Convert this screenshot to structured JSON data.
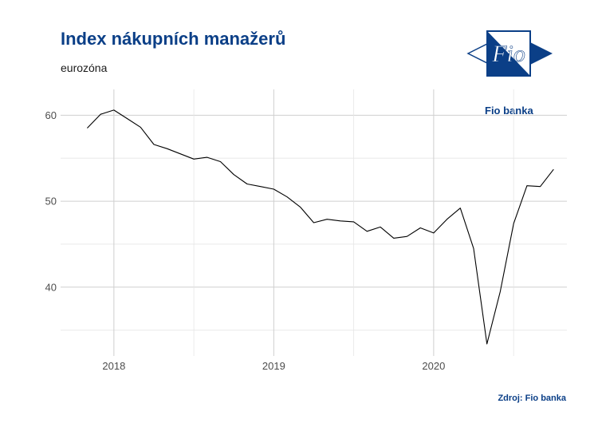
{
  "header": {
    "title": "Index nákupních manažerů",
    "subtitle": "eurozóna"
  },
  "logo": {
    "mark_text": "Fio",
    "brand_text": "Fio banka",
    "color": "#0b3f87"
  },
  "footer": {
    "source": "Zdroj: Fio banka"
  },
  "chart_data": {
    "type": "line",
    "title": "Index nákupních manažerů",
    "subtitle": "eurozóna",
    "xlabel": "",
    "ylabel": "",
    "x_tick_labels": [
      "2018",
      "2019",
      "2020"
    ],
    "y_tick_labels": [
      "40",
      "50",
      "60"
    ],
    "ylim": [
      32,
      63
    ],
    "xlim": [
      "2017-09",
      "2020-11"
    ],
    "grid": true,
    "line_color": "#000000",
    "series": [
      {
        "x": [
          "2017-11",
          "2017-12",
          "2018-01",
          "2018-02",
          "2018-03",
          "2018-04",
          "2018-05",
          "2018-06",
          "2018-07",
          "2018-08",
          "2018-09",
          "2018-10",
          "2018-11",
          "2018-12",
          "2019-01",
          "2019-02",
          "2019-03",
          "2019-04",
          "2019-05",
          "2019-06",
          "2019-07",
          "2019-08",
          "2019-09",
          "2019-10",
          "2019-11",
          "2019-12",
          "2020-01",
          "2020-02",
          "2020-03",
          "2020-04",
          "2020-05",
          "2020-06",
          "2020-07",
          "2020-08",
          "2020-09",
          "2020-10"
        ],
        "values": [
          58.5,
          60.1,
          60.6,
          59.6,
          58.6,
          56.6,
          56.1,
          55.5,
          54.9,
          55.1,
          54.6,
          53.1,
          52.0,
          51.7,
          51.4,
          50.5,
          49.3,
          47.5,
          47.9,
          47.7,
          47.6,
          46.5,
          47.0,
          45.7,
          45.9,
          46.9,
          46.3,
          47.9,
          49.2,
          44.5,
          33.4,
          39.5,
          47.4,
          51.8,
          51.7,
          53.7
        ]
      }
    ]
  }
}
